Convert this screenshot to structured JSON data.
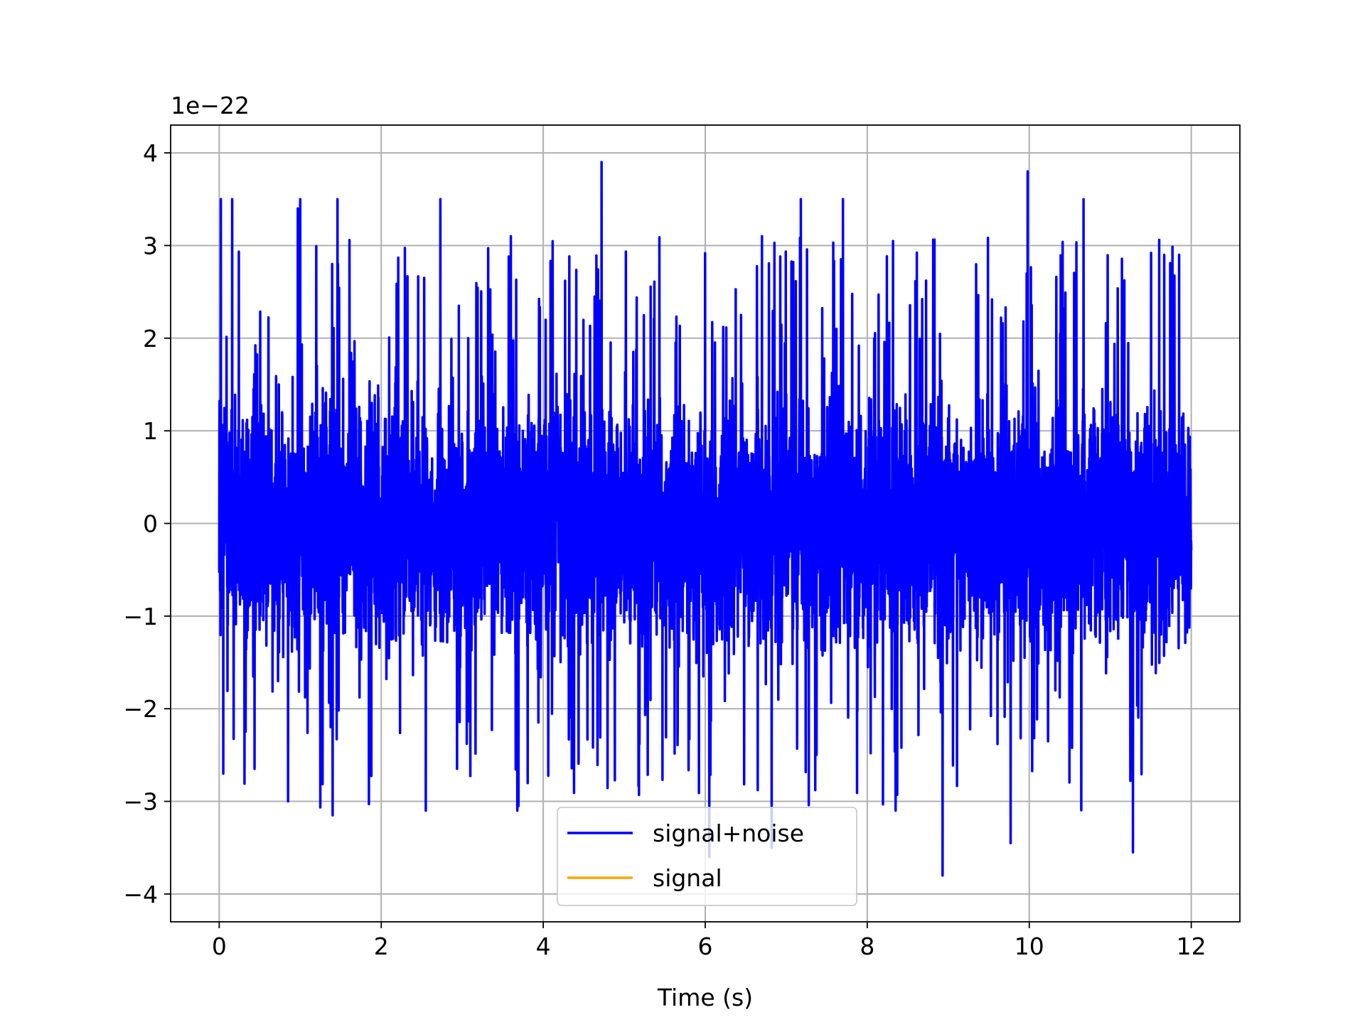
{
  "chart_data": {
    "type": "line",
    "title": "",
    "xlabel": "Time (s)",
    "ylabel": "",
    "y_offset_text": "1e−22",
    "xlim": [
      -0.6,
      12.6
    ],
    "ylim": [
      -4.3,
      4.3
    ],
    "x_ticks": [
      0,
      2,
      4,
      6,
      8,
      10,
      12
    ],
    "x_tick_labels": [
      "0",
      "2",
      "4",
      "6",
      "8",
      "10",
      "12"
    ],
    "y_ticks": [
      -4,
      -3,
      -2,
      -1,
      0,
      1,
      2,
      3,
      4
    ],
    "y_tick_labels": [
      "−4",
      "−3",
      "−2",
      "−1",
      "0",
      "1",
      "2",
      "3",
      "4"
    ],
    "grid": true,
    "legend_position": "bottom-center",
    "x_range": [
      0,
      12
    ],
    "series": [
      {
        "name": "signal+noise",
        "color": "#0000ff",
        "description_values": {
          "typical_amplitude_range": [
            -2.0,
            2.0
          ],
          "peaks": [
            {
              "x": 0.02,
              "y": 3.5
            },
            {
              "x": 0.16,
              "y": 3.5
            },
            {
              "x": 0.97,
              "y": 3.4
            },
            {
              "x": 1.0,
              "y": 3.5
            },
            {
              "x": 1.46,
              "y": 3.5
            },
            {
              "x": 2.73,
              "y": 3.5
            },
            {
              "x": 3.6,
              "y": 3.1
            },
            {
              "x": 4.72,
              "y": 3.9
            },
            {
              "x": 6.7,
              "y": 3.1
            },
            {
              "x": 7.18,
              "y": 3.5
            },
            {
              "x": 7.7,
              "y": 3.5
            },
            {
              "x": 9.98,
              "y": 3.8
            },
            {
              "x": 10.67,
              "y": 3.5
            },
            {
              "x": 11.85,
              "y": 2.9
            }
          ],
          "troughs": [
            {
              "x": 0.05,
              "y": -2.7
            },
            {
              "x": 0.85,
              "y": -3.0
            },
            {
              "x": 1.4,
              "y": -3.15
            },
            {
              "x": 2.55,
              "y": -3.1
            },
            {
              "x": 3.68,
              "y": -3.1
            },
            {
              "x": 6.05,
              "y": -3.6
            },
            {
              "x": 6.82,
              "y": -3.5
            },
            {
              "x": 8.35,
              "y": -3.1
            },
            {
              "x": 8.93,
              "y": -3.8
            },
            {
              "x": 9.77,
              "y": -3.45
            },
            {
              "x": 11.28,
              "y": -3.55
            }
          ]
        }
      },
      {
        "name": "signal",
        "color": "#ffa500",
        "values_note": "",
        "constant_value": 0
      }
    ]
  }
}
